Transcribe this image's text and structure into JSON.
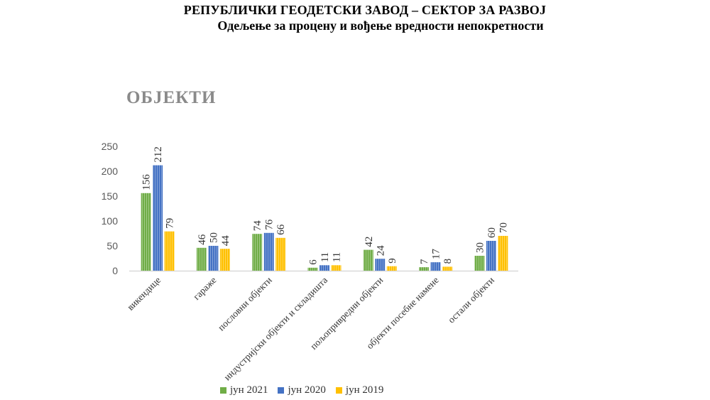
{
  "header": {
    "line1": "РЕПУБЛИЧКИ ГЕОДЕТСКИ ЗАВОД – СЕКТОР ЗА РАЗВОЈ",
    "line2": "Одељење за процену и вођење вредности непокретности"
  },
  "colors": {
    "series": [
      "#70ad47",
      "#4472c4",
      "#ffc000"
    ],
    "axis": "#d9d9d9",
    "tick_text": "#595959",
    "title": "#8a8a8a"
  },
  "chart_data": {
    "type": "bar",
    "title": "ОБЈЕКТИ",
    "xlabel": "",
    "ylabel": "",
    "ylim": [
      0,
      250
    ],
    "yticks": [
      "0",
      "50",
      "100",
      "150",
      "200",
      "250"
    ],
    "grid": false,
    "legend_position": "bottom",
    "categories": [
      "викендице",
      "гараже",
      "пословни објекти",
      "индустријски објекти и складишта",
      "пољопривредни објекти",
      "објекти посебне намене",
      "остали објекти"
    ],
    "series": [
      {
        "name": "јун 2021",
        "values": [
          156,
          46,
          74,
          6,
          42,
          7,
          30
        ]
      },
      {
        "name": "јун 2020",
        "values": [
          212,
          50,
          76,
          11,
          24,
          17,
          60
        ]
      },
      {
        "name": "јун 2019",
        "values": [
          79,
          44,
          66,
          11,
          9,
          8,
          70
        ]
      }
    ]
  }
}
